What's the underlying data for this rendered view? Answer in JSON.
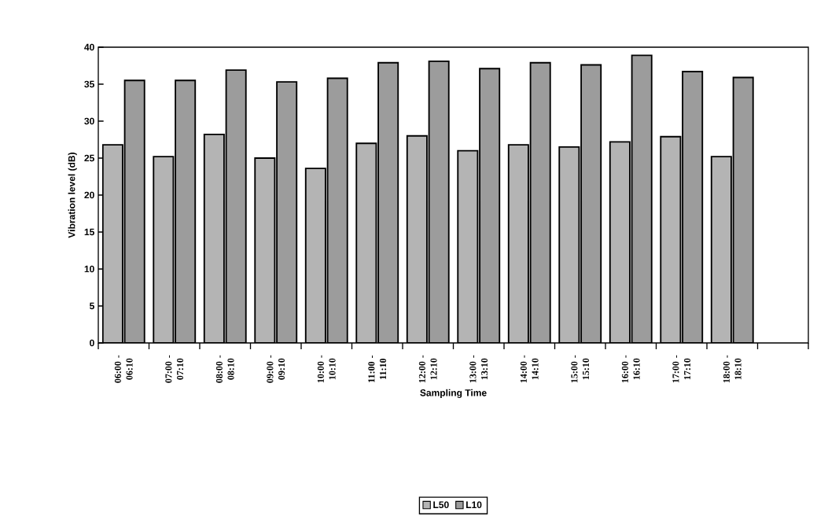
{
  "chart_data": {
    "type": "bar",
    "xlabel": "Sampling Time",
    "ylabel": "Vibration level (dB)",
    "categories": [
      "06:00 - 06:10",
      "07:00 - 07:10",
      "08:00 - 08:10",
      "09:00 - 09:10",
      "10:00 - 10:10",
      "11:00 - 11:10",
      "12:00 - 12:10",
      "13:00 - 13:10",
      "14:00 - 14:10",
      "15:00 - 15:10",
      "16:00 - 16:10",
      "17:00 - 17:10",
      "18:00 - 18:10",
      null
    ],
    "series": [
      {
        "name": "L50",
        "color": "#b4b4b4",
        "values": [
          26.8,
          25.2,
          28.2,
          25.0,
          23.6,
          27.0,
          28.0,
          26.0,
          26.8,
          26.5,
          27.2,
          27.9,
          25.2,
          null
        ]
      },
      {
        "name": "L10",
        "color": "#9c9c9c",
        "values": [
          35.5,
          35.5,
          36.9,
          35.3,
          35.8,
          37.9,
          38.1,
          37.1,
          37.9,
          37.6,
          38.9,
          36.7,
          35.9,
          null
        ]
      }
    ],
    "ylim": [
      0,
      40
    ],
    "yticks": [
      0,
      5,
      10,
      15,
      20,
      25,
      30,
      35,
      40
    ],
    "grid": false,
    "legend": "bottom"
  }
}
